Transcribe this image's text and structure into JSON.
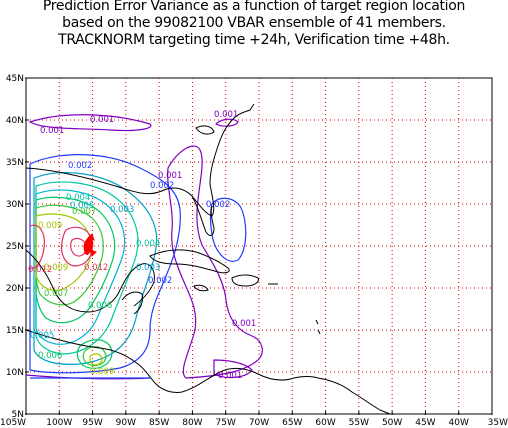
{
  "title": {
    "line1": "Prediction Error Variance as a function of target region location",
    "line2": "based on the 99082100 VBAR ensemble of 41 members.",
    "line3": "TRACKNORM targeting time +24h, Verification time +48h."
  },
  "axes": {
    "lat_labels": [
      "45N",
      "40N",
      "35N",
      "30N",
      "25N",
      "20N",
      "15N",
      "10N",
      "5N"
    ],
    "lon_labels": [
      "105W",
      "100W",
      "95W",
      "90W",
      "85W",
      "80W",
      "75W",
      "70W",
      "65W",
      "60W",
      "55W",
      "50W",
      "45W",
      "40W",
      "35W"
    ],
    "lat_range": [
      5,
      45
    ],
    "lon_range": [
      -105,
      -35
    ]
  },
  "contour_labels": [
    {
      "text": "0.001",
      "color": "#8000c0"
    },
    {
      "text": "0.001",
      "color": "#8000c0"
    },
    {
      "text": "0.001",
      "color": "#8000c0"
    },
    {
      "text": "0.001",
      "color": "#8000c0"
    },
    {
      "text": "0.001",
      "color": "#8000c0"
    },
    {
      "text": "0.001",
      "color": "#8000c0"
    },
    {
      "text": "0.002",
      "color": "#1e3cff"
    },
    {
      "text": "0.002",
      "color": "#1e3cff"
    },
    {
      "text": "0.002",
      "color": "#1e3cff"
    },
    {
      "text": "0.002",
      "color": "#1e3cff"
    },
    {
      "text": "0.003",
      "color": "#00a0c8"
    },
    {
      "text": "0.003",
      "color": "#00a0c8"
    },
    {
      "text": "0.004",
      "color": "#00c8a0"
    },
    {
      "text": "0.004",
      "color": "#00c8a0"
    },
    {
      "text": "0.005",
      "color": "#00b4d2"
    },
    {
      "text": "0.005",
      "color": "#00b4d2"
    },
    {
      "text": "0.006",
      "color": "#00c864"
    },
    {
      "text": "0.006",
      "color": "#00c864"
    },
    {
      "text": "0.007",
      "color": "#32c832"
    },
    {
      "text": "0.007",
      "color": "#32c832"
    },
    {
      "text": "0.009",
      "color": "#a0c800"
    },
    {
      "text": "0.009",
      "color": "#a0c800"
    },
    {
      "text": "0.009",
      "color": "#a0c800"
    },
    {
      "text": "0.012",
      "color": "#e03060"
    },
    {
      "text": "0.012",
      "color": "#e03060"
    }
  ],
  "colors": {
    "grid": "#e00000",
    "coast": "#000000",
    "marker": "#ff0000"
  }
}
